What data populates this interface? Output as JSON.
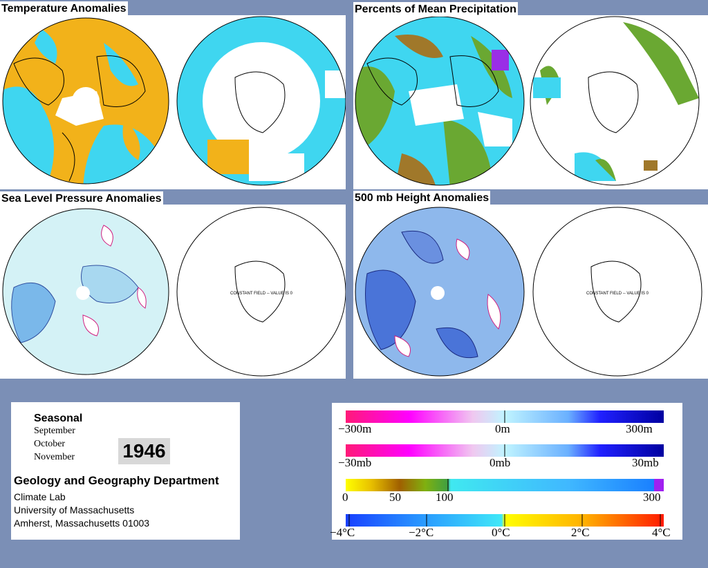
{
  "panels": {
    "temperature": {
      "title": "Temperature Anomalies"
    },
    "precipitation": {
      "title": "Percents of Mean Precipitation"
    },
    "slp": {
      "title": "Sea Level Pressure Anomalies",
      "constant_field": "CONSTANT FIELD -- VALUE IS 0"
    },
    "height500": {
      "title": "500 mb Height Anomalies",
      "constant_field": "CONSTANT FIELD -- VALUE IS 0"
    }
  },
  "info": {
    "period": "Seasonal",
    "months": [
      "September",
      "October",
      "November"
    ],
    "year": "1946",
    "department": "Geology and Geography Department",
    "lab": "Climate Lab",
    "university": "University of Massachusetts",
    "address": "Amherst, Massachusetts 01003"
  },
  "legends": {
    "height": {
      "min": "−300m",
      "mid": "0m",
      "max": "300m"
    },
    "pressure": {
      "min": "−30mb",
      "mid": "0mb",
      "max": "30mb"
    },
    "precip": {
      "l0": "0",
      "l50": "50",
      "l100": "100",
      "l300": "300"
    },
    "temp": {
      "l1": "−4°C",
      "l2": "−2°C",
      "l3": "0°C",
      "l4": "2°C",
      "l5": "4°C"
    }
  },
  "colors": {
    "background": "#7b8fb6",
    "warm": "#f2b21a",
    "cool": "#3fd6f0",
    "wet": "#6aa832",
    "dry": "#a0782a",
    "low": "#4a74d8",
    "high": "#e83a8a"
  }
}
